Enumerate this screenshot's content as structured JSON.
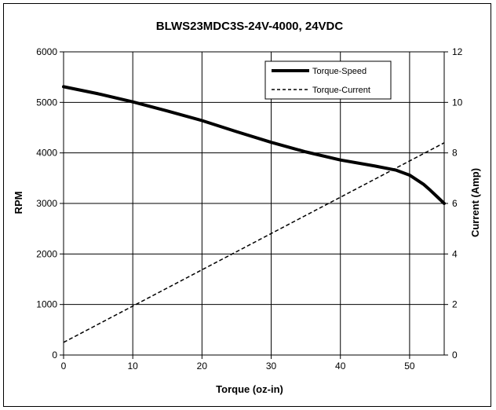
{
  "chart_data": {
    "type": "line",
    "title": "BLWS23MDC3S-24V-4000, 24VDC",
    "xlabel": "Torque (oz-in)",
    "ylabel": "RPM",
    "y2label": "Current (Amp)",
    "xlim": [
      0,
      55
    ],
    "ylim": [
      0,
      6000
    ],
    "y2lim": [
      0,
      12
    ],
    "xticks": [
      0,
      10,
      20,
      30,
      40,
      50
    ],
    "yticks": [
      0,
      1000,
      2000,
      3000,
      4000,
      5000,
      6000
    ],
    "y2ticks": [
      0,
      2,
      4,
      6,
      8,
      10,
      12
    ],
    "grid": true,
    "legend_position": "top-right",
    "series": [
      {
        "name": "Torque-Speed",
        "axis": "left",
        "style": "solid-thick",
        "color": "#000000",
        "x": [
          0,
          5,
          10,
          15,
          20,
          25,
          30,
          35,
          40,
          45,
          48,
          50,
          52,
          53,
          54,
          55
        ],
        "y": [
          5310,
          5170,
          5010,
          4830,
          4640,
          4420,
          4210,
          4020,
          3860,
          3740,
          3660,
          3560,
          3380,
          3260,
          3130,
          3000
        ]
      },
      {
        "name": "Torque-Current",
        "axis": "right",
        "style": "dashed",
        "color": "#000000",
        "x": [
          0,
          55
        ],
        "y": [
          0.5,
          8.4
        ]
      }
    ]
  }
}
